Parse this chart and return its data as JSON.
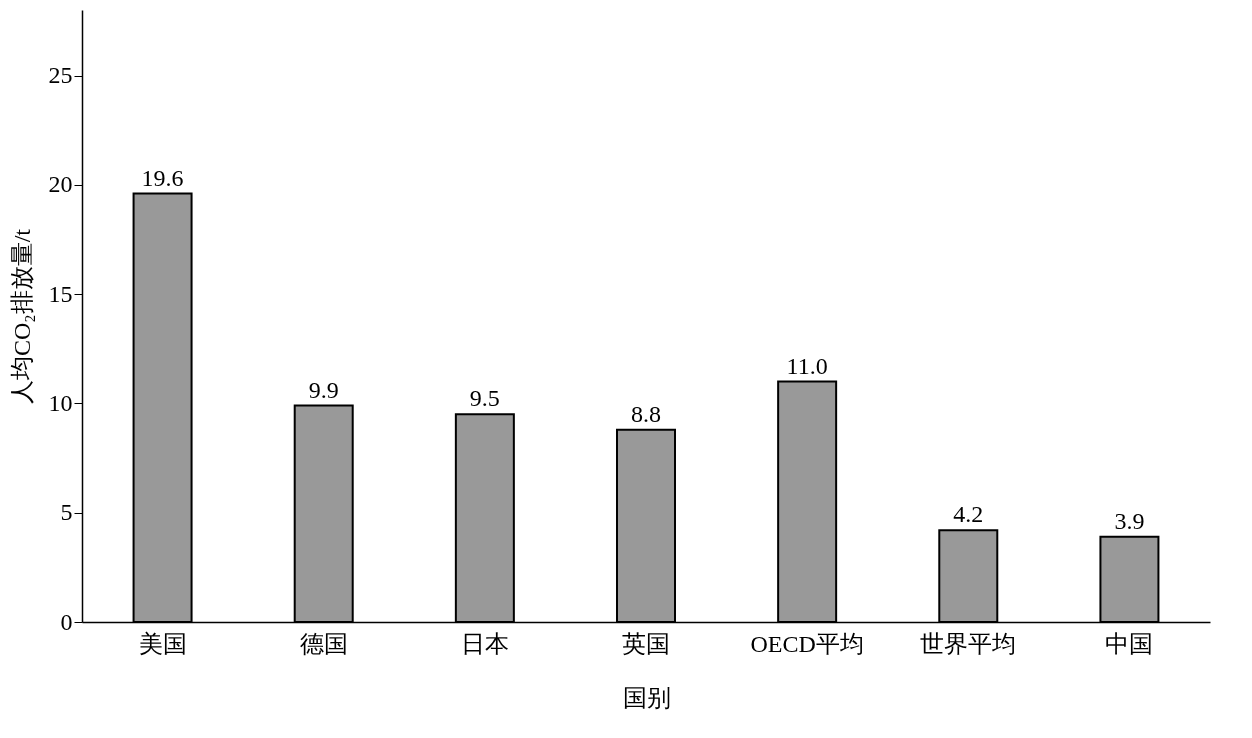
{
  "chart_data": {
    "type": "bar",
    "xlabel": "国别",
    "ylabel": "人均CO₂排放量/t",
    "categories": [
      "美国",
      "德国",
      "日本",
      "英国",
      "OECD平均",
      "世界平均",
      "中国"
    ],
    "values": [
      19.6,
      9.9,
      9.5,
      8.8,
      11.0,
      4.2,
      3.9
    ],
    "value_labels": [
      "19.6",
      "9.9",
      "9.5",
      "8.8",
      "11.0",
      "4.2",
      "3.9"
    ],
    "color": "#999999",
    "ylim": [
      0,
      28
    ],
    "yticks": [
      0,
      5,
      10,
      15,
      20,
      25
    ],
    "grid": false
  }
}
